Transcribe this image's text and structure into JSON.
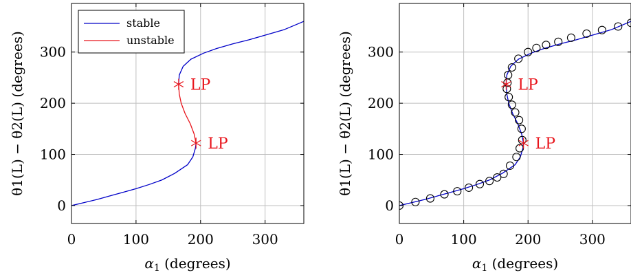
{
  "colors": {
    "stable": "#0000c8",
    "unstable": "#e8141b",
    "markers": "#000000",
    "grid": "#bfbfbf"
  },
  "chart_data": [
    {
      "type": "line",
      "xlabel_sym": "α",
      "xlabel_sub": "1",
      "xlabel_unit": "(degrees)",
      "ylabel": "θ1(L) − θ2(L)  (degrees)",
      "xlim": [
        0,
        360
      ],
      "ylim": [
        -35,
        395
      ],
      "xticks": [
        "0",
        "100",
        "200",
        "300"
      ],
      "yticks": [
        "0",
        "100",
        "200",
        "300"
      ],
      "grid": true,
      "legend": {
        "position": "top-left",
        "entries": [
          "stable",
          "unstable"
        ]
      },
      "series": [
        {
          "name": "stable",
          "points": [
            [
              0,
              0
            ],
            [
              20,
              6
            ],
            [
              40,
              12
            ],
            [
              60,
              19
            ],
            [
              80,
              26
            ],
            [
              100,
              33
            ],
            [
              120,
              41
            ],
            [
              140,
              50
            ],
            [
              160,
              63
            ],
            [
              180,
              80
            ],
            [
              188,
              95
            ],
            [
              192,
              112
            ],
            [
              193,
              122
            ]
          ]
        },
        {
          "name": "unstable",
          "points": [
            [
              193,
              122
            ],
            [
              190,
              140
            ],
            [
              184,
              160
            ],
            [
              176,
              180
            ],
            [
              170,
              200
            ],
            [
              167,
              218
            ],
            [
              166,
              237
            ]
          ]
        },
        {
          "name": "stable",
          "points": [
            [
              166,
              237
            ],
            [
              167,
              255
            ],
            [
              173,
              272
            ],
            [
              185,
              286
            ],
            [
              205,
              298
            ],
            [
              225,
              307
            ],
            [
              250,
              316
            ],
            [
              275,
              324
            ],
            [
              300,
              333
            ],
            [
              330,
              344
            ],
            [
              360,
              360
            ]
          ]
        }
      ],
      "annotations": [
        {
          "x": 166,
          "y": 237,
          "text": "LP"
        },
        {
          "x": 193,
          "y": 122,
          "text": "LP"
        }
      ]
    },
    {
      "type": "line",
      "xlabel_sym": "α",
      "xlabel_sub": "1",
      "xlabel_unit": "(degrees)",
      "ylabel": "θ1(L) − θ2(L)  (degrees)",
      "xlim": [
        0,
        360
      ],
      "ylim": [
        -35,
        395
      ],
      "xticks": [
        "0",
        "100",
        "200",
        "300"
      ],
      "yticks": [
        "0",
        "100",
        "200",
        "300"
      ],
      "grid": true,
      "series": [
        {
          "points": [
            [
              0,
              0
            ],
            [
              20,
              6
            ],
            [
              40,
              12
            ],
            [
              60,
              19
            ],
            [
              80,
              26
            ],
            [
              100,
              33
            ],
            [
              120,
              41
            ],
            [
              140,
              50
            ],
            [
              160,
              63
            ],
            [
              180,
              80
            ],
            [
              188,
              95
            ],
            [
              192,
              112
            ],
            [
              193,
              122
            ],
            [
              190,
              140
            ],
            [
              184,
              160
            ],
            [
              176,
              180
            ],
            [
              170,
              200
            ],
            [
              167,
              218
            ],
            [
              166,
              237
            ],
            [
              167,
              255
            ],
            [
              173,
              272
            ],
            [
              185,
              286
            ],
            [
              205,
              298
            ],
            [
              225,
              307
            ],
            [
              250,
              316
            ],
            [
              275,
              324
            ],
            [
              300,
              333
            ],
            [
              330,
              344
            ],
            [
              360,
              360
            ]
          ]
        }
      ],
      "circles": [
        [
          0,
          0
        ],
        [
          25,
          7
        ],
        [
          48,
          14
        ],
        [
          70,
          22
        ],
        [
          90,
          28
        ],
        [
          108,
          35
        ],
        [
          125,
          42
        ],
        [
          140,
          48
        ],
        [
          152,
          55
        ],
        [
          162,
          62
        ],
        [
          172,
          78
        ],
        [
          182,
          95
        ],
        [
          187,
          112
        ],
        [
          191,
          128
        ],
        [
          190,
          150
        ],
        [
          186,
          167
        ],
        [
          180,
          182
        ],
        [
          175,
          197
        ],
        [
          170,
          212
        ],
        [
          167,
          228
        ],
        [
          168,
          240
        ],
        [
          169,
          255
        ],
        [
          175,
          270
        ],
        [
          185,
          287
        ],
        [
          200,
          300
        ],
        [
          213,
          308
        ],
        [
          228,
          314
        ],
        [
          247,
          320
        ],
        [
          267,
          328
        ],
        [
          291,
          336
        ],
        [
          315,
          343
        ],
        [
          340,
          350
        ],
        [
          360,
          357
        ]
      ],
      "annotations": [
        {
          "x": 166,
          "y": 237,
          "text": "LP"
        },
        {
          "x": 193,
          "y": 122,
          "text": "LP"
        }
      ]
    }
  ]
}
